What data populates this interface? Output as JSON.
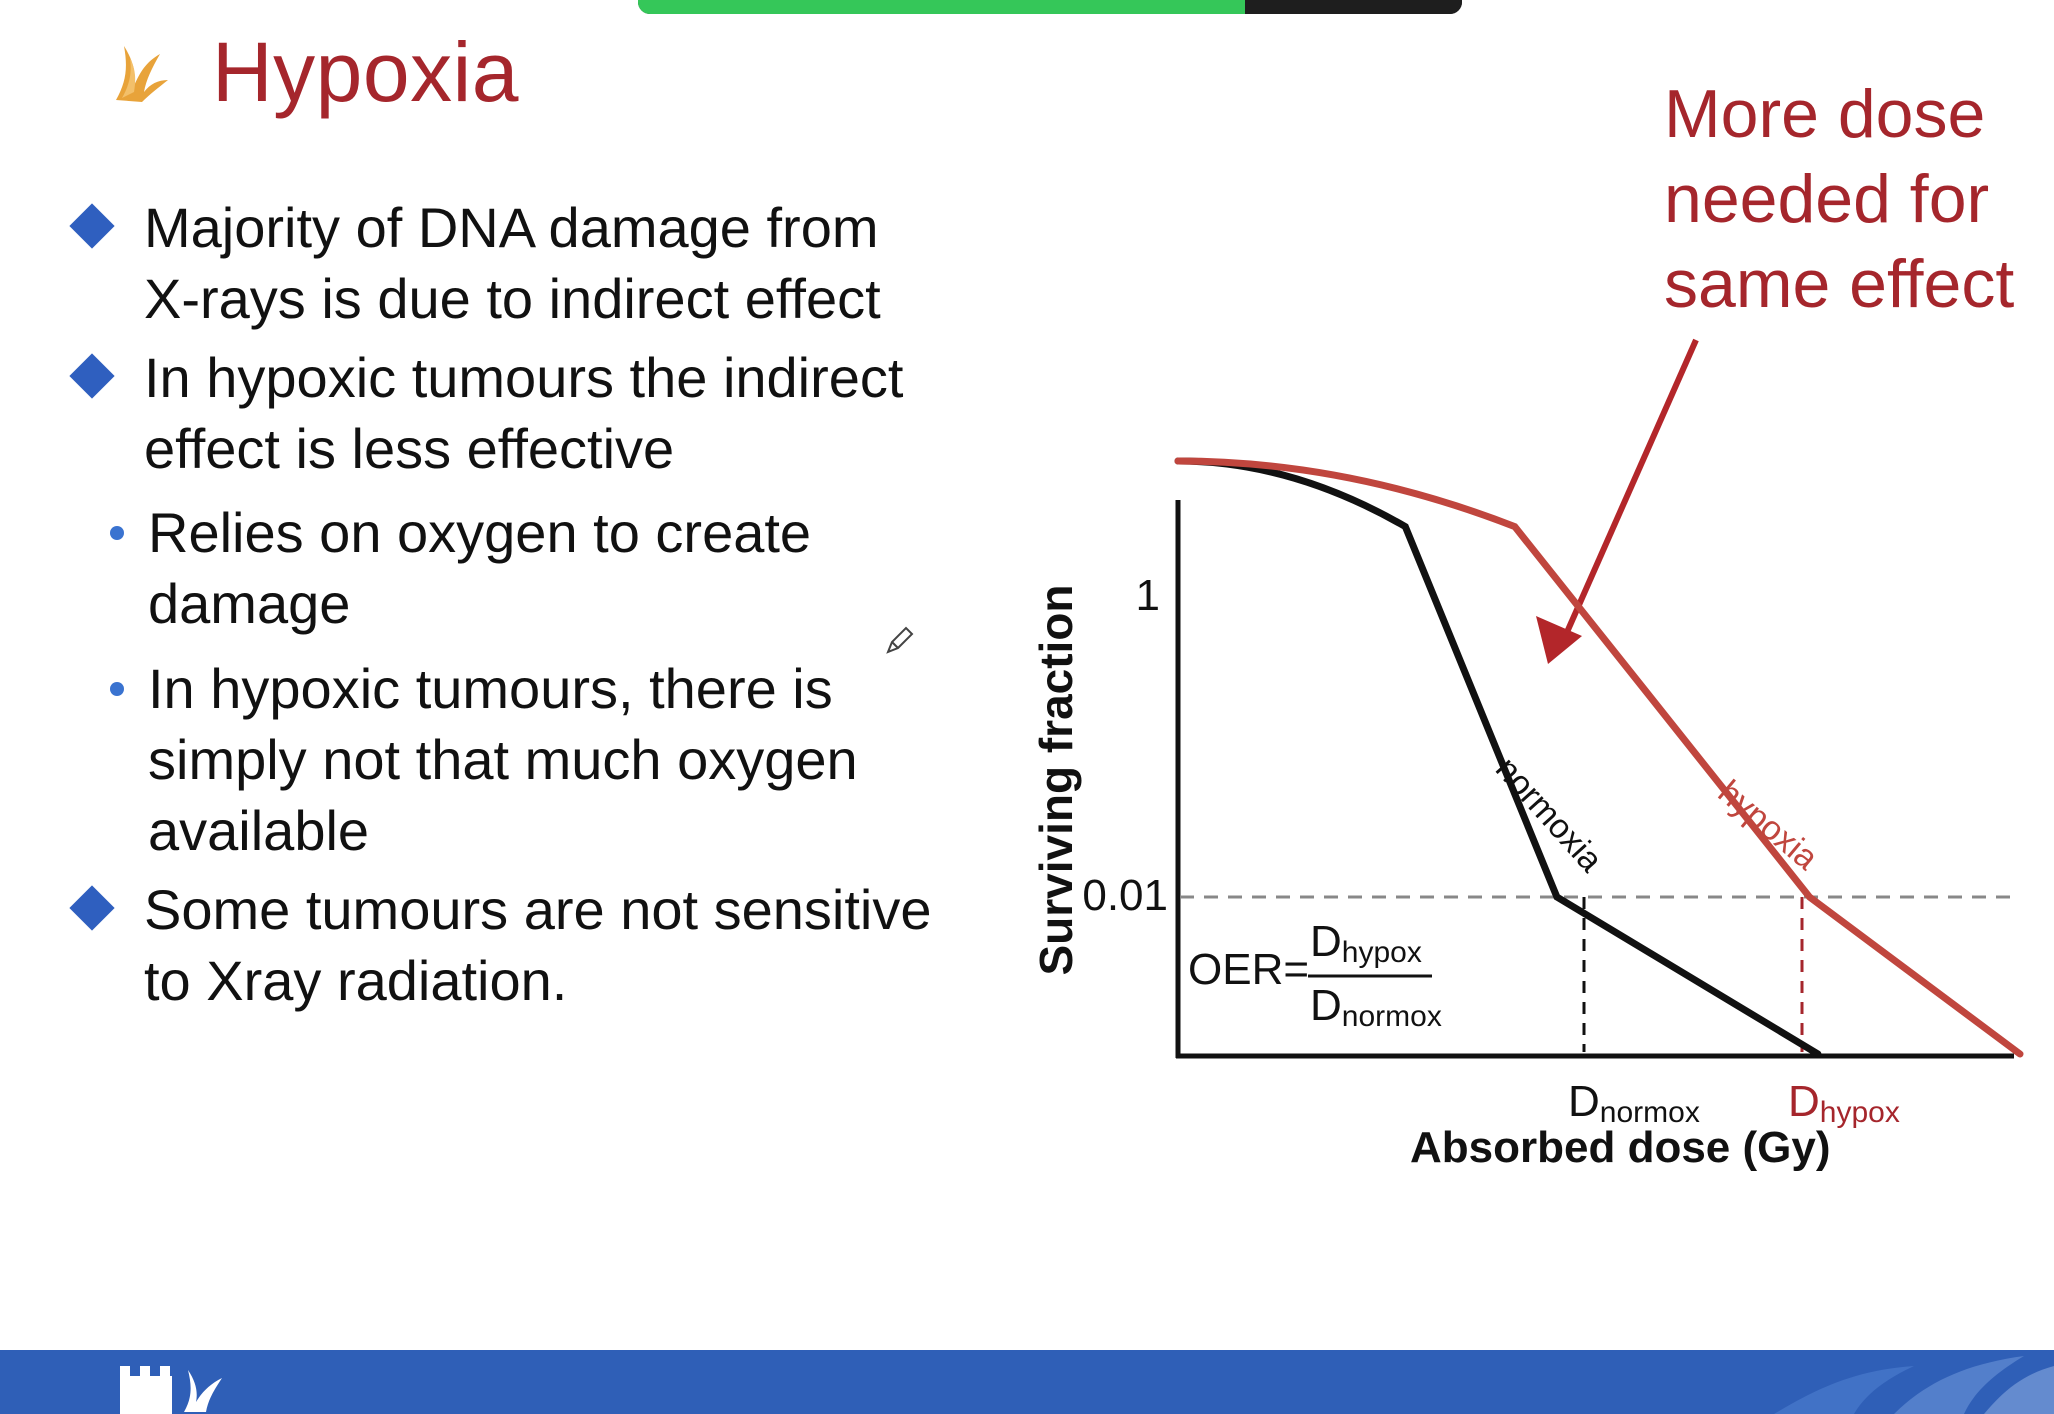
{
  "slide": {
    "title": "Hypoxia",
    "bullets": [
      {
        "level": 1,
        "lines": [
          "Majority of DNA damage from",
          "X-rays is due to indirect effect"
        ]
      },
      {
        "level": 1,
        "lines": [
          "In hypoxic tumours the indirect",
          "effect is less effective"
        ]
      },
      {
        "level": 2,
        "lines": [
          "Relies on oxygen to create",
          "damage"
        ]
      },
      {
        "level": 2,
        "lines": [
          "In hypoxic tumours, there is",
          "simply not that much oxygen",
          "available"
        ]
      },
      {
        "level": 1,
        "lines": [
          "Some tumours are not sensitive",
          "to Xray radiation."
        ]
      }
    ],
    "annotation": [
      "More dose",
      "needed for",
      "same effect"
    ]
  },
  "chart_data": {
    "type": "line",
    "ylabel": "Surviving fraction",
    "xlabel": "Absorbed dose (Gy)",
    "yticks": [
      "1",
      "0.01"
    ],
    "x_markers": [
      {
        "base": "D",
        "sub": "normox",
        "color": "#111111"
      },
      {
        "base": "D",
        "sub": "hypox",
        "color": "#a5262c"
      }
    ],
    "series": [
      {
        "name": "normoxia",
        "color": "#111111",
        "x": [
          0,
          0.27,
          0.45,
          0.76
        ],
        "y": [
          1,
          0.5,
          0.01,
          0.0001
        ]
      },
      {
        "name": "hypoxia",
        "color": "#c0463e",
        "x": [
          0,
          0.4,
          0.75,
          1.0
        ],
        "y": [
          1,
          0.5,
          0.01,
          0.0001
        ]
      }
    ],
    "formula": {
      "lhs": "OER=",
      "num_base": "D",
      "num_sub": "hypox",
      "den_base": "D",
      "den_sub": "normox"
    }
  },
  "colors": {
    "title": "#a5262c",
    "bullet_diamond": "#2f5fbf",
    "bullet_dot": "#3a73d0",
    "footer": "#2f5fb7"
  }
}
